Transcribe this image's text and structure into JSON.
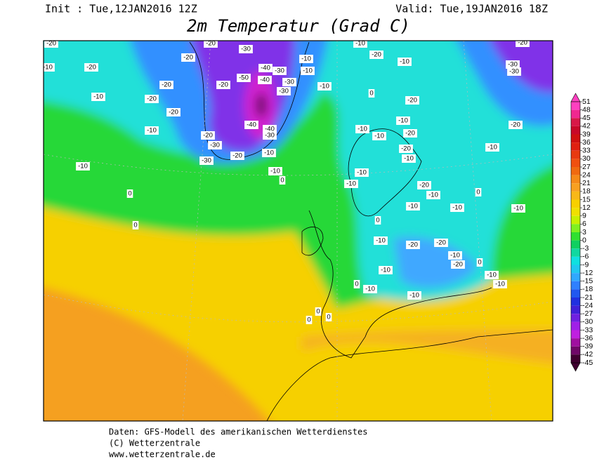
{
  "header": {
    "init": "Init : Tue,12JAN2016 12Z",
    "valid": "Valid: Tue,19JAN2016 18Z",
    "title": "2m Temperatur (Grad C)"
  },
  "colorbar": {
    "ticks": [
      51,
      48,
      45,
      42,
      39,
      36,
      33,
      30,
      27,
      24,
      21,
      18,
      15,
      12,
      9,
      6,
      3,
      0,
      -3,
      -6,
      -9,
      -12,
      -15,
      -18,
      -21,
      -24,
      -27,
      -30,
      -33,
      -36,
      -39,
      -42,
      -45
    ],
    "colors": [
      "#ff40c0",
      "#f02890",
      "#d81848",
      "#c80828",
      "#d01010",
      "#e02010",
      "#e83a10",
      "#f05010",
      "#f06a10",
      "#f58a18",
      "#f8a020",
      "#f8b818",
      "#f8d000",
      "#f0e000",
      "#c8f000",
      "#80f020",
      "#30e030",
      "#10d060",
      "#10d8a0",
      "#10e0e0",
      "#20c8f0",
      "#30a8ff",
      "#3080ff",
      "#2058f0",
      "#2030e0",
      "#4020d8",
      "#7020e0",
      "#a020e8",
      "#c020e0",
      "#a010a0",
      "#700868",
      "#400030"
    ]
  },
  "map_labels": [
    -20,
    -10,
    -20,
    -10,
    -20,
    -20,
    -20,
    -20,
    -30,
    -40,
    -30,
    -50,
    -40,
    -30,
    -30,
    -10,
    -10,
    -10,
    -20,
    -20,
    -10,
    -20,
    -30,
    -30,
    -20,
    -40,
    -40,
    -30,
    -10,
    -10,
    0,
    -10,
    0,
    0,
    -10,
    -20,
    -10,
    0,
    -20,
    -10,
    -10,
    -20,
    -10,
    -20,
    -10,
    -10,
    -10,
    -20,
    -10,
    -10,
    -10,
    0,
    -10,
    -30,
    -30,
    -20,
    -20,
    -10,
    -10,
    -20,
    -20,
    -10,
    -20,
    -10,
    -10,
    -10,
    -10,
    -10,
    0,
    0,
    0,
    0,
    0,
    0
  ],
  "footer": {
    "line1": "Daten: GFS-Modell des amerikanischen Wetterdienstes",
    "line2": "(C) Wetterzentrale",
    "line3": "www.wetterzentrale.de"
  }
}
